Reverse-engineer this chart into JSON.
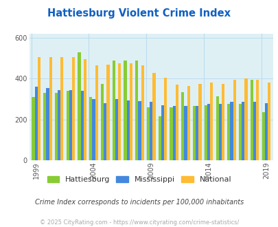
{
  "title": "Hattiesburg Violent Crime Index",
  "title_color": "#1060c0",
  "plot_bg_color": "#dff0f5",
  "fig_bg_color": "#ffffff",
  "subtitle": "Crime Index corresponds to incidents per 100,000 inhabitants",
  "footer": "© 2025 CityRating.com - https://www.cityrating.com/crime-statistics/",
  "years": [
    1999,
    2000,
    2001,
    2002,
    2003,
    2004,
    2005,
    2006,
    2007,
    2008,
    2009,
    2010,
    2011,
    2012,
    2013,
    2014,
    2015,
    2016,
    2017,
    2018,
    2019
  ],
  "hattiesburg": [
    310,
    330,
    330,
    340,
    530,
    310,
    375,
    490,
    490,
    490,
    260,
    215,
    260,
    335,
    265,
    270,
    315,
    275,
    275,
    395,
    235
  ],
  "mississippi": [
    360,
    355,
    345,
    345,
    340,
    300,
    280,
    300,
    295,
    290,
    285,
    270,
    265,
    265,
    265,
    275,
    275,
    285,
    285,
    285,
    280
  ],
  "national": [
    507,
    507,
    507,
    507,
    495,
    465,
    470,
    475,
    475,
    465,
    430,
    405,
    370,
    365,
    375,
    380,
    375,
    395,
    400,
    395,
    380
  ],
  "bar_colors": {
    "hattiesburg": "#88cc33",
    "mississippi": "#4488dd",
    "national": "#ffbb33"
  },
  "tick_years": [
    1999,
    2004,
    2009,
    2014,
    2019
  ],
  "ylim": [
    0,
    620
  ],
  "yticks": [
    0,
    200,
    400,
    600
  ],
  "legend_labels": [
    "Hattiesburg",
    "Mississippi",
    "National"
  ],
  "subtitle_color": "#444444",
  "footer_color": "#aaaaaa",
  "grid_color": "#bbddee"
}
